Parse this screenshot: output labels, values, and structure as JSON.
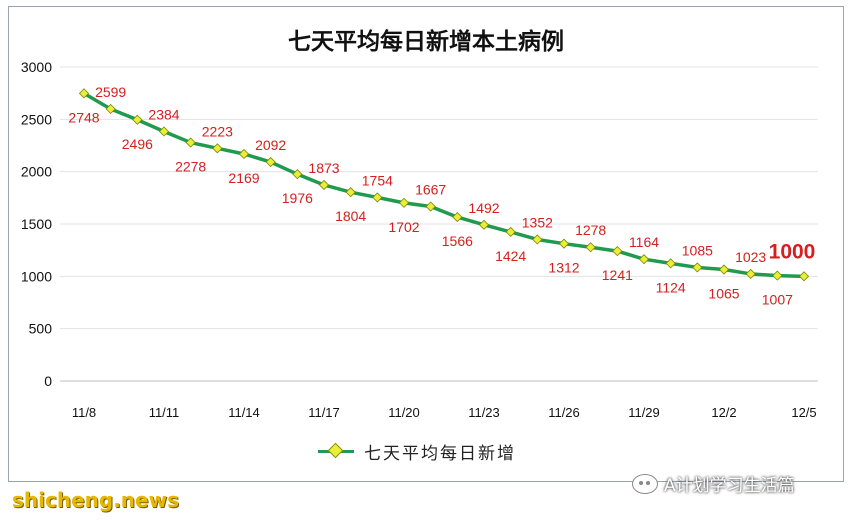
{
  "chart_data": {
    "type": "line",
    "title": "七天平均每日新增本土病例",
    "legend": "七天平均每日新增",
    "legend_position": "bottom",
    "grid": true,
    "ylim": [
      0,
      3000
    ],
    "yticks": [
      "0",
      "500",
      "1000",
      "1500",
      "2000",
      "2500",
      "3000"
    ],
    "xtick_labels": [
      "11/8",
      "11/11",
      "11/14",
      "11/17",
      "11/20",
      "11/23",
      "11/26",
      "11/29",
      "12/2",
      "12/5"
    ],
    "x": [
      "11/8",
      "11/9",
      "11/10",
      "11/11",
      "11/12",
      "11/13",
      "11/14",
      "11/15",
      "11/16",
      "11/17",
      "11/18",
      "11/19",
      "11/20",
      "11/21",
      "11/22",
      "11/23",
      "11/24",
      "11/25",
      "11/26",
      "11/27",
      "11/28",
      "11/29",
      "11/30",
      "12/1",
      "12/2",
      "12/3",
      "12/4",
      "12/5"
    ],
    "series": [
      {
        "name": "七天平均每日新增",
        "values": [
          2748,
          2599,
          2496,
          2384,
          2278,
          2223,
          2169,
          2092,
          1976,
          1873,
          1804,
          1754,
          1702,
          1667,
          1566,
          1492,
          1424,
          1352,
          1312,
          1278,
          1241,
          1164,
          1124,
          1085,
          1065,
          1023,
          1007,
          1000
        ],
        "color": "#1f9a4e",
        "marker_color": "#e8ef3a"
      }
    ],
    "data_labels": [
      {
        "text": "2748",
        "i": 0,
        "pos": "below"
      },
      {
        "text": "2599",
        "i": 1,
        "pos": "above"
      },
      {
        "text": "2496",
        "i": 2,
        "pos": "below"
      },
      {
        "text": "2384",
        "i": 3,
        "pos": "above"
      },
      {
        "text": "2278",
        "i": 4,
        "pos": "below"
      },
      {
        "text": "2223",
        "i": 5,
        "pos": "above"
      },
      {
        "text": "2169",
        "i": 6,
        "pos": "below"
      },
      {
        "text": "2092",
        "i": 7,
        "pos": "above"
      },
      {
        "text": "1976",
        "i": 8,
        "pos": "below"
      },
      {
        "text": "1873",
        "i": 9,
        "pos": "above"
      },
      {
        "text": "1804",
        "i": 10,
        "pos": "below"
      },
      {
        "text": "1754",
        "i": 11,
        "pos": "above"
      },
      {
        "text": "1702",
        "i": 12,
        "pos": "below"
      },
      {
        "text": "1667",
        "i": 13,
        "pos": "above"
      },
      {
        "text": "1566",
        "i": 14,
        "pos": "below"
      },
      {
        "text": "1492",
        "i": 15,
        "pos": "above"
      },
      {
        "text": "1424",
        "i": 16,
        "pos": "below"
      },
      {
        "text": "1352",
        "i": 17,
        "pos": "above"
      },
      {
        "text": "1312",
        "i": 18,
        "pos": "below"
      },
      {
        "text": "1278",
        "i": 19,
        "pos": "above"
      },
      {
        "text": "1241",
        "i": 20,
        "pos": "below"
      },
      {
        "text": "1164",
        "i": 21,
        "pos": "above"
      },
      {
        "text": "1124",
        "i": 22,
        "pos": "below"
      },
      {
        "text": "1085",
        "i": 23,
        "pos": "above"
      },
      {
        "text": "1065",
        "i": 24,
        "pos": "below"
      },
      {
        "text": "1023",
        "i": 25,
        "pos": "above"
      },
      {
        "text": "1007",
        "i": 26,
        "pos": "below"
      },
      {
        "text": "1000",
        "i": 27,
        "pos": "above",
        "emphasis": true
      }
    ],
    "label_color": "#d42020"
  },
  "credit": "shicheng.news",
  "badge": {
    "text": "A计划学习生活篇",
    "icon": "wechat-icon"
  }
}
